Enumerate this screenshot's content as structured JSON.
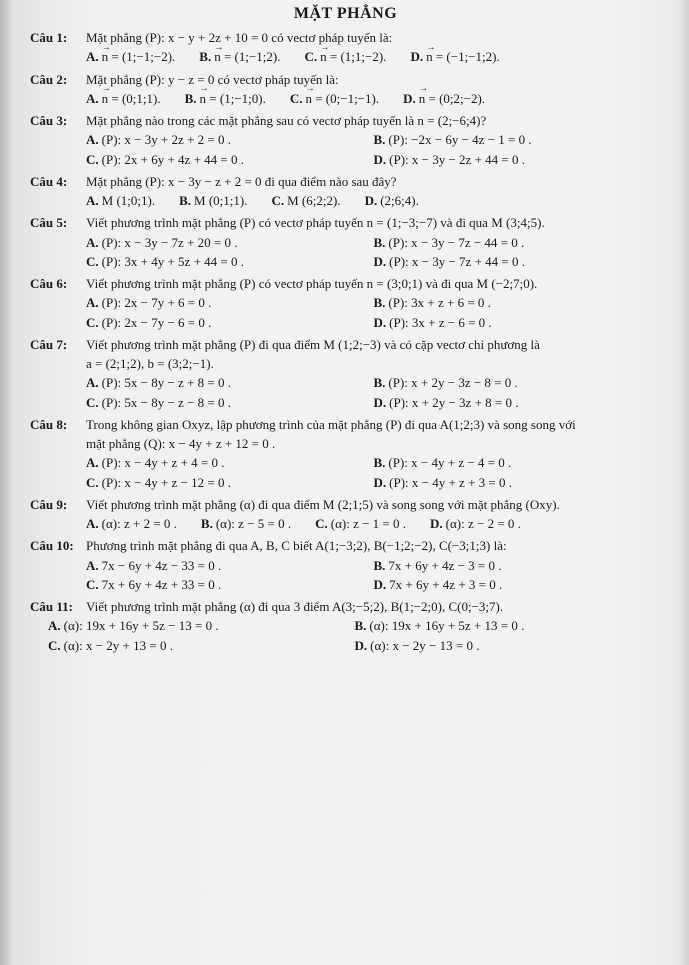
{
  "title": "MẶT PHẲNG",
  "questions": [
    {
      "label": "Câu 1:",
      "text": "Mặt phẳng (P): x − y + 2z + 10 = 0 có vectơ pháp tuyến là:",
      "layout": "row",
      "opts": [
        {
          "l": "A.",
          "t": "n = (1;−1;−2)."
        },
        {
          "l": "B.",
          "t": "n = (1;−1;2)."
        },
        {
          "l": "C.",
          "t": "n = (1;1;−2)."
        },
        {
          "l": "D.",
          "t": "n = (−1;−1;2)."
        }
      ],
      "vec": true
    },
    {
      "label": "Câu 2:",
      "text": "Mặt phẳng (P): y − z = 0 có vectơ pháp tuyến là:",
      "layout": "row",
      "opts": [
        {
          "l": "A.",
          "t": "n = (0;1;1)."
        },
        {
          "l": "B.",
          "t": "n = (1;−1;0)."
        },
        {
          "l": "C.",
          "t": "n = (0;−1;−1)."
        },
        {
          "l": "D.",
          "t": "n = (0;2;−2)."
        }
      ],
      "vec": true
    },
    {
      "label": "Câu 3:",
      "text": "Mặt phẳng nào trong các mặt phẳng sau có vectơ pháp tuyến là n = (2;−6;4)?",
      "layout": "two",
      "opts": [
        {
          "l": "A.",
          "t": "(P): x − 3y + 2z + 2 = 0 ."
        },
        {
          "l": "B.",
          "t": "(P): −2x − 6y − 4z − 1 = 0 ."
        },
        {
          "l": "C.",
          "t": "(P): 2x + 6y + 4z + 44 = 0 ."
        },
        {
          "l": "D.",
          "t": "(P): x − 3y − 2z + 44 = 0 ."
        }
      ]
    },
    {
      "label": "Câu 4:",
      "text": "Mặt phẳng (P): x − 3y − z + 2 = 0 đi qua điểm nào sau đây?",
      "layout": "row",
      "opts": [
        {
          "l": "A.",
          "t": "M (1;0;1)."
        },
        {
          "l": "B.",
          "t": "M (0;1;1)."
        },
        {
          "l": "C.",
          "t": "M (6;2;2)."
        },
        {
          "l": "D.",
          "t": "(2;6;4)."
        }
      ]
    },
    {
      "label": "Câu 5:",
      "text": "Viết phương trình mặt phẳng (P) có vectơ pháp tuyến n = (1;−3;−7) và đi qua M (3;4;5).",
      "layout": "two",
      "opts": [
        {
          "l": "A.",
          "t": "(P): x − 3y − 7z + 20 = 0 ."
        },
        {
          "l": "B.",
          "t": "(P): x − 3y − 7z − 44 = 0 ."
        },
        {
          "l": "C.",
          "t": "(P): 3x + 4y + 5z + 44 = 0 ."
        },
        {
          "l": "D.",
          "t": "(P): x − 3y − 7z + 44 = 0 ."
        }
      ]
    },
    {
      "label": "Câu 6:",
      "text": "Viết phương trình mặt phẳng (P) có vectơ pháp tuyến n = (3;0;1) và đi qua M (−2;7;0).",
      "layout": "two",
      "opts": [
        {
          "l": "A.",
          "t": "(P): 2x − 7y + 6 = 0 ."
        },
        {
          "l": "B.",
          "t": "(P): 3x + z + 6 = 0 ."
        },
        {
          "l": "C.",
          "t": "(P): 2x − 7y − 6 = 0 ."
        },
        {
          "l": "D.",
          "t": "(P): 3x + z − 6 = 0 ."
        }
      ]
    },
    {
      "label": "Câu 7:",
      "text": "Viết phương trình mặt phẳng (P) đi qua điểm M (1;2;−3) và có cặp vectơ chỉ phương là",
      "extra": "a = (2;1;2), b = (3;2;−1).",
      "layout": "two",
      "opts": [
        {
          "l": "A.",
          "t": "(P): 5x − 8y − z + 8 = 0 ."
        },
        {
          "l": "B.",
          "t": "(P): x + 2y − 3z − 8 = 0 ."
        },
        {
          "l": "C.",
          "t": "(P): 5x − 8y − z − 8 = 0 ."
        },
        {
          "l": "D.",
          "t": "(P): x + 2y − 3z + 8 = 0 ."
        }
      ]
    },
    {
      "label": "Câu 8:",
      "text": "Trong không gian Oxyz, lập phương trình của mặt phẳng (P) đi qua A(1;2;3) và song song với",
      "extra": "mặt phẳng (Q): x − 4y + z + 12 = 0 .",
      "layout": "two",
      "opts": [
        {
          "l": "A.",
          "t": "(P): x − 4y + z + 4 = 0 ."
        },
        {
          "l": "B.",
          "t": "(P): x − 4y + z − 4 = 0 ."
        },
        {
          "l": "C.",
          "t": "(P): x − 4y + z − 12 = 0 ."
        },
        {
          "l": "D.",
          "t": "(P): x − 4y + z + 3 = 0 ."
        }
      ]
    },
    {
      "label": "Câu 9:",
      "text": "Viết phương trình mặt phẳng (α) đi qua điểm M (2;1;5) và song song với mặt phẳng (Oxy).",
      "layout": "row",
      "opts": [
        {
          "l": "A.",
          "t": "(α): z + 2 = 0 ."
        },
        {
          "l": "B.",
          "t": "(α): z − 5 = 0 ."
        },
        {
          "l": "C.",
          "t": "(α): z − 1 = 0 ."
        },
        {
          "l": "D.",
          "t": "(α): z − 2 = 0 ."
        }
      ]
    },
    {
      "label": "Câu 10:",
      "text": "Phương trình mặt phẳng đi qua A, B, C biết A(1;−3;2), B(−1;2;−2), C(−3;1;3) là:",
      "layout": "two",
      "opts": [
        {
          "l": "A.",
          "t": "7x − 6y + 4z − 33 = 0 ."
        },
        {
          "l": "B.",
          "t": "7x + 6y + 4z − 3 = 0 ."
        },
        {
          "l": "C.",
          "t": "7x + 6y + 4z + 33 = 0 ."
        },
        {
          "l": "D.",
          "t": "7x + 6y + 4z + 3 = 0 ."
        }
      ]
    },
    {
      "label": "Câu 11:",
      "text": "Viết phương trình mặt phẳng (α) đi qua 3 điểm A(3;−5;2), B(1;−2;0), C(0;−3;7).",
      "layout": "two-wide",
      "opts": [
        {
          "l": "A.",
          "t": "(α): 19x + 16y + 5z − 13 = 0 ."
        },
        {
          "l": "B.",
          "t": "(α): 19x + 16y + 5z + 13 = 0 ."
        },
        {
          "l": "C.",
          "t": "(α): x − 2y + 13 = 0 ."
        },
        {
          "l": "D.",
          "t": "(α): x − 2y − 13 = 0 ."
        }
      ]
    }
  ]
}
